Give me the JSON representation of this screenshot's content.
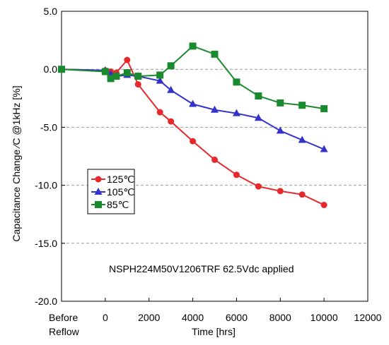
{
  "chart_data": {
    "type": "line",
    "xlabel": "Time  [hrs]",
    "ylabel": "Capacitance Change ⁄C @1kHz [%]",
    "xlim": [
      -2000,
      12000
    ],
    "ylim": [
      -20,
      5
    ],
    "x_ticks": [
      {
        "value": -2000,
        "label": "Before"
      },
      {
        "value": 0,
        "label": "0"
      },
      {
        "value": 2000,
        "label": "2000"
      },
      {
        "value": 4000,
        "label": "4000"
      },
      {
        "value": 6000,
        "label": "6000"
      },
      {
        "value": 8000,
        "label": "8000"
      },
      {
        "value": 10000,
        "label": "10000"
      },
      {
        "value": 12000,
        "label": "12000"
      }
    ],
    "x_tick_sublabel": "Reflow",
    "y_ticks": [
      {
        "value": 5,
        "label": "5.0"
      },
      {
        "value": 0,
        "label": "0.0"
      },
      {
        "value": -5,
        "label": "-5.0"
      },
      {
        "value": -10,
        "label": "-10.0"
      },
      {
        "value": -15,
        "label": "-15.0"
      },
      {
        "value": -20,
        "label": "-20.0"
      }
    ],
    "grid": "horizontal-dashed",
    "legend_position": "middle-left",
    "annotation": "NSPH224M50V1206TRF 62.5Vdc applied",
    "series": [
      {
        "name": "125℃",
        "color": "#e8292c",
        "marker": "circle",
        "x": [
          -2000,
          0,
          250,
          500,
          1000,
          1500,
          2500,
          3000,
          4000,
          5000,
          6000,
          7000,
          8000,
          9000,
          10000
        ],
        "y": [
          0.0,
          -0.1,
          -0.2,
          -0.3,
          0.8,
          -1.3,
          -3.7,
          -4.5,
          -6.2,
          -7.8,
          -9.1,
          -10.1,
          -10.5,
          -10.8,
          -11.7
        ]
      },
      {
        "name": "105℃",
        "color": "#3333cc",
        "marker": "triangle",
        "x": [
          -2000,
          0,
          250,
          500,
          1000,
          1500,
          2500,
          3000,
          4000,
          5000,
          6000,
          7000,
          8000,
          9000,
          10000
        ],
        "y": [
          0.0,
          -0.1,
          -0.4,
          -0.6,
          -0.5,
          -0.6,
          -1.0,
          -1.8,
          -3.0,
          -3.5,
          -3.8,
          -4.2,
          -5.3,
          -6.1,
          -6.9
        ]
      },
      {
        "name": "85℃",
        "color": "#1a8a2e",
        "marker": "square",
        "x": [
          -2000,
          0,
          250,
          500,
          1000,
          1500,
          2500,
          3000,
          4000,
          5000,
          6000,
          7000,
          8000,
          9000,
          10000
        ],
        "y": [
          0.0,
          -0.2,
          -0.8,
          -0.6,
          -0.3,
          -0.6,
          -0.5,
          0.3,
          2.0,
          1.3,
          -1.1,
          -2.3,
          -2.9,
          -3.1,
          -3.4
        ]
      }
    ]
  }
}
